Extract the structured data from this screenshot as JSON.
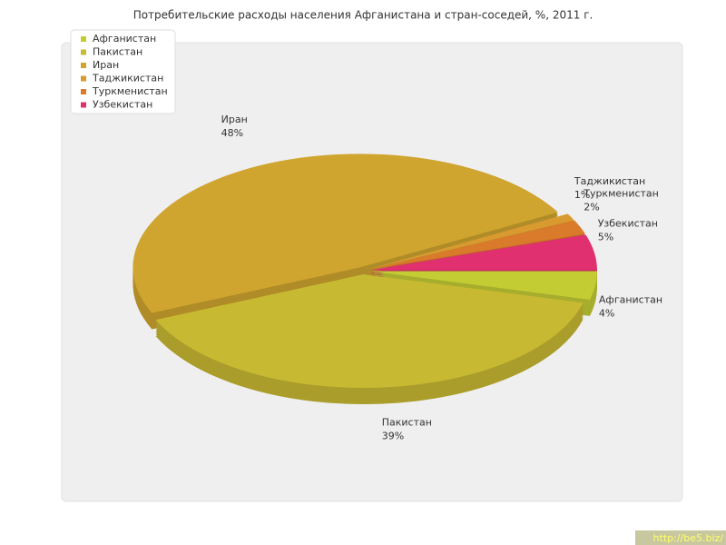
{
  "chart_data": {
    "type": "pie",
    "title": "Потребительские расходы населения Афганистана и стран-соседей, %, 2011 г.",
    "categories": [
      "Афганистан",
      "Пакистан",
      "Иран",
      "Таджикистан",
      "Туркменистан",
      "Узбекистан"
    ],
    "values": [
      4,
      39,
      48,
      1,
      2,
      5
    ],
    "value_labels": [
      "4%",
      "39%",
      "48%",
      "1%",
      "2%",
      "5%"
    ],
    "colors": [
      "#c4cc34",
      "#c8b932",
      "#cfa52f",
      "#d99a30",
      "#d97b2a",
      "#e0306f"
    ],
    "legend": "top-left",
    "watermark": "http://be5.biz/"
  }
}
